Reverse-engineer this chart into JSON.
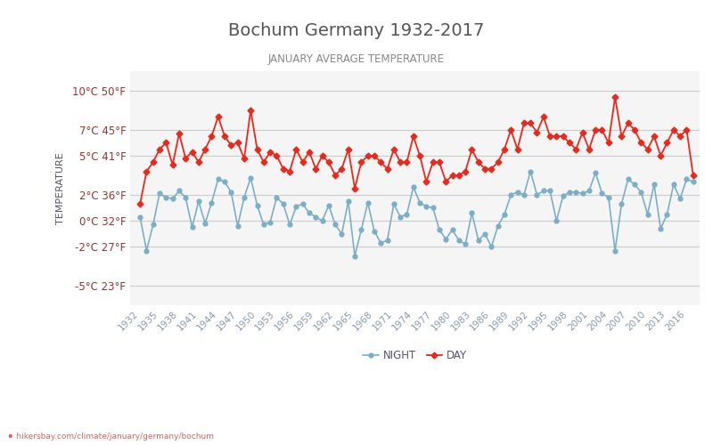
{
  "title": "Bochum Germany 1932-2017",
  "subtitle": "JANUARY AVERAGE TEMPERATURE",
  "ylabel": "TEMPERATURE",
  "xlabel_url": "hikersbay.com/climate/january/germany/bochum",
  "background_color": "#ffffff",
  "grid_color": "#cccccc",
  "plot_bg_color": "#f5f5f5",
  "night_color": "#7bafc4",
  "day_color": "#e8291c",
  "title_color": "#555555",
  "subtitle_color": "#888888",
  "ylabel_color": "#555566",
  "tick_label_color": "#993333",
  "ytick_labels": [
    "10°C 50°F",
    "7°C 45°F",
    "5°C 41°F",
    "2°C 36°F",
    "0°C 32°F",
    "-2°C 27°F",
    "-5°C 23°F"
  ],
  "ytick_values": [
    10,
    7,
    5,
    2,
    0,
    -2,
    -5
  ],
  "ylim": [
    -6.5,
    11.5
  ],
  "years": [
    1932,
    1933,
    1934,
    1935,
    1936,
    1937,
    1938,
    1939,
    1940,
    1941,
    1942,
    1943,
    1944,
    1945,
    1946,
    1947,
    1948,
    1949,
    1950,
    1951,
    1952,
    1953,
    1954,
    1955,
    1956,
    1957,
    1958,
    1959,
    1960,
    1961,
    1962,
    1963,
    1964,
    1965,
    1966,
    1967,
    1968,
    1969,
    1970,
    1971,
    1972,
    1973,
    1974,
    1975,
    1976,
    1977,
    1978,
    1979,
    1980,
    1981,
    1982,
    1983,
    1984,
    1985,
    1986,
    1987,
    1988,
    1989,
    1990,
    1991,
    1992,
    1993,
    1994,
    1995,
    1996,
    1997,
    1998,
    1999,
    2000,
    2001,
    2002,
    2003,
    2004,
    2005,
    2006,
    2007,
    2008,
    2009,
    2010,
    2011,
    2012,
    2013,
    2014,
    2015,
    2016,
    2017
  ],
  "xtick_years": [
    1932,
    1935,
    1938,
    1941,
    1944,
    1947,
    1950,
    1953,
    1956,
    1959,
    1962,
    1965,
    1968,
    1971,
    1974,
    1977,
    1980,
    1983,
    1986,
    1989,
    1992,
    1995,
    1998,
    2001,
    2004,
    2007,
    2010,
    2013,
    2016
  ],
  "night_data": [
    0.3,
    -2.3,
    -0.3,
    2.1,
    1.8,
    1.7,
    2.3,
    1.8,
    -0.5,
    1.5,
    -0.2,
    1.4,
    3.2,
    3.0,
    2.2,
    -0.4,
    1.8,
    3.3,
    1.2,
    -0.3,
    -0.1,
    1.8,
    1.3,
    -0.3,
    1.1,
    1.3,
    0.6,
    0.3,
    0.0,
    1.2,
    -0.3,
    -1.0,
    1.5,
    -2.7,
    -0.7,
    1.4,
    -0.8,
    -1.7,
    -1.5,
    1.3,
    0.3,
    0.5,
    2.6,
    1.4,
    1.1,
    1.0,
    -0.7,
    -1.4,
    -0.7,
    -1.5,
    -1.8,
    0.6,
    -1.5,
    -1.0,
    -2.0,
    -0.4,
    0.5,
    2.0,
    2.2,
    2.0,
    3.8,
    2.0,
    2.3,
    2.3,
    0.0,
    1.9,
    2.2,
    2.2,
    2.1,
    2.3,
    3.7,
    2.1,
    1.8,
    -2.3,
    1.3,
    3.2,
    2.8,
    2.2,
    0.5,
    2.8,
    -0.6,
    0.5,
    2.8,
    1.7,
    3.2,
    3.0
  ],
  "day_data": [
    1.3,
    3.8,
    4.5,
    5.5,
    6.0,
    4.3,
    6.7,
    4.8,
    5.3,
    4.5,
    5.5,
    6.5,
    8.0,
    6.5,
    5.8,
    6.0,
    4.8,
    8.5,
    5.5,
    4.5,
    5.3,
    5.0,
    4.0,
    3.8,
    5.5,
    4.5,
    5.3,
    4.0,
    5.0,
    4.5,
    3.5,
    4.0,
    5.5,
    2.5,
    4.5,
    5.0,
    5.0,
    4.5,
    4.0,
    5.5,
    4.5,
    4.5,
    6.5,
    5.0,
    3.0,
    4.5,
    4.5,
    3.0,
    3.5,
    3.5,
    3.8,
    5.5,
    4.5,
    4.0,
    4.0,
    4.5,
    5.5,
    7.0,
    5.5,
    7.5,
    7.5,
    6.8,
    8.0,
    6.5,
    6.5,
    6.5,
    6.0,
    5.5,
    6.8,
    5.5,
    7.0,
    7.0,
    6.0,
    9.5,
    6.5,
    7.5,
    7.0,
    6.0,
    5.5,
    6.5,
    5.0,
    6.0,
    7.0,
    6.5,
    7.0,
    3.5
  ]
}
